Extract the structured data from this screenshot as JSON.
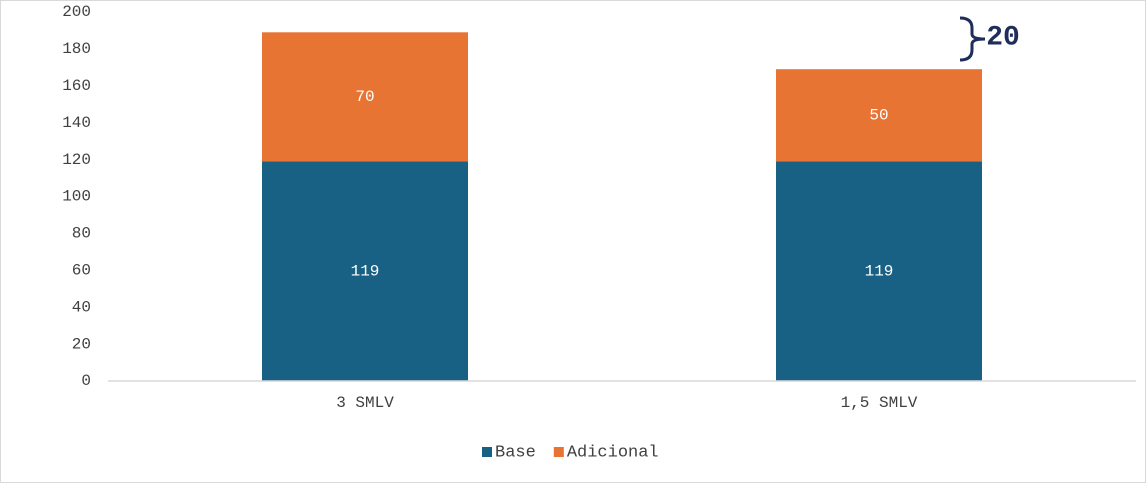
{
  "chart_data": {
    "type": "stacked_bar",
    "categories": [
      "3 SMLV",
      "1,5 SMLV"
    ],
    "series": [
      {
        "name": "Base",
        "color": "#186184",
        "values": [
          119,
          119
        ]
      },
      {
        "name": "Adicional",
        "color": "#e87434",
        "values": [
          70,
          50
        ]
      }
    ],
    "ylim": [
      0,
      200
    ],
    "yticks": [
      0,
      20,
      40,
      60,
      80,
      100,
      120,
      140,
      160,
      180,
      200
    ],
    "grid": false,
    "legend": "bottom",
    "annotation": "20"
  }
}
